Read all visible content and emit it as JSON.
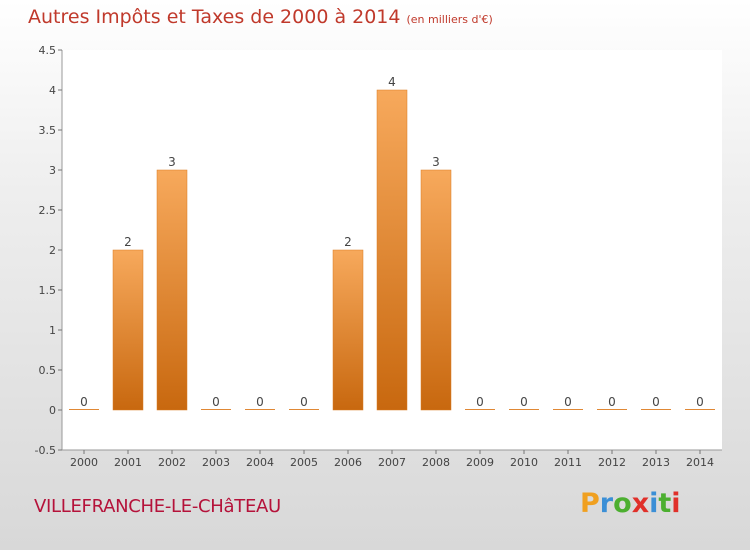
{
  "chart_data": {
    "type": "bar",
    "title": "Autres Impôts et Taxes de 2000 à 2014",
    "unit": "(en milliers d'€)",
    "categories": [
      "2000",
      "2001",
      "2002",
      "2003",
      "2004",
      "2005",
      "2006",
      "2007",
      "2008",
      "2009",
      "2010",
      "2011",
      "2012",
      "2013",
      "2014"
    ],
    "values": [
      0,
      2,
      3,
      0,
      0,
      0,
      2,
      4,
      3,
      0,
      0,
      0,
      0,
      0,
      0
    ],
    "data_labels": [
      "0",
      "2",
      "3",
      "0",
      "0",
      "0",
      "2",
      "4",
      "3",
      "0",
      "0",
      "0",
      "0",
      "0",
      "0"
    ],
    "ylim": [
      -0.5,
      4.5
    ],
    "yticks": [
      4.5,
      4,
      3.5,
      3,
      2.5,
      2,
      1.5,
      1,
      0.5,
      0,
      -0.5
    ],
    "ytick_labels": [
      "4.5",
      "4",
      "3.5",
      "3",
      "2.5",
      "2",
      "1.5",
      "1",
      "0.5",
      "0",
      "-0.5"
    ],
    "grid": false,
    "bar_color": "#f0933a"
  },
  "footer": {
    "commune": "VILLEFRANCHE-LE-CHâTEAU"
  },
  "brand": {
    "text": "Proxiti",
    "colors": [
      "#f0a020",
      "#3b8fd6",
      "#4caf30",
      "#e0302a",
      "#3b8fd6",
      "#4caf30",
      "#e0302a"
    ]
  }
}
